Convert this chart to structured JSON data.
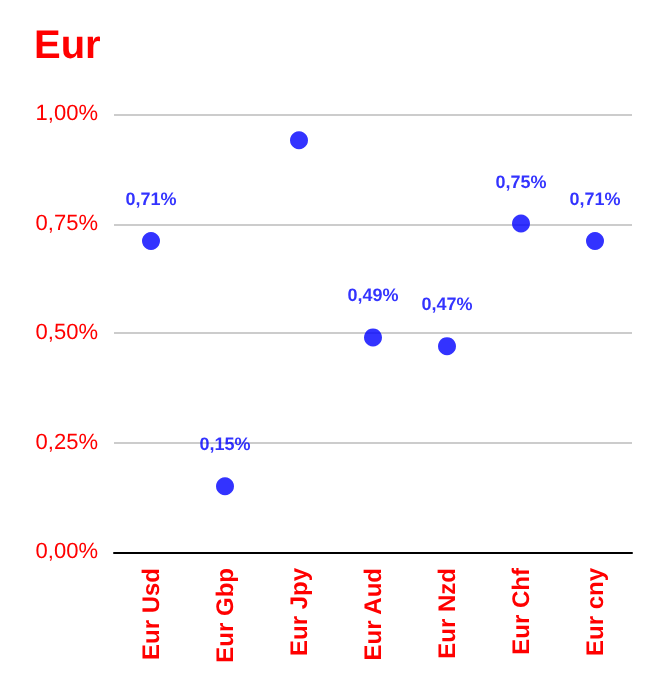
{
  "chart_data": {
    "type": "scatter",
    "title": "Eur",
    "categories": [
      "Eur Usd",
      "Eur Gbp",
      "Eur Jpy",
      "Eur Aud",
      "Eur Nzd",
      "Eur Chf",
      "Eur cny"
    ],
    "series": [
      {
        "color": "#0000ff",
        "values": [
          0.71,
          0.15,
          0.94,
          0.49,
          0.47,
          0.75,
          0.71
        ],
        "value_labels": [
          "0,71%",
          "0,15%",
          null,
          "0,49%",
          "0,47%",
          "0,75%",
          "0,71%"
        ]
      }
    ],
    "ylim": [
      0,
      1
    ],
    "yticks": [
      {
        "value": 0,
        "label": "0,00%"
      },
      {
        "value": 0.25,
        "label": "0,25%"
      },
      {
        "value": 0.5,
        "label": "0,50%"
      },
      {
        "value": 0.75,
        "label": "0,75%"
      },
      {
        "value": 1,
        "label": "1,00%"
      }
    ],
    "grid": "y",
    "marker": "circle"
  }
}
